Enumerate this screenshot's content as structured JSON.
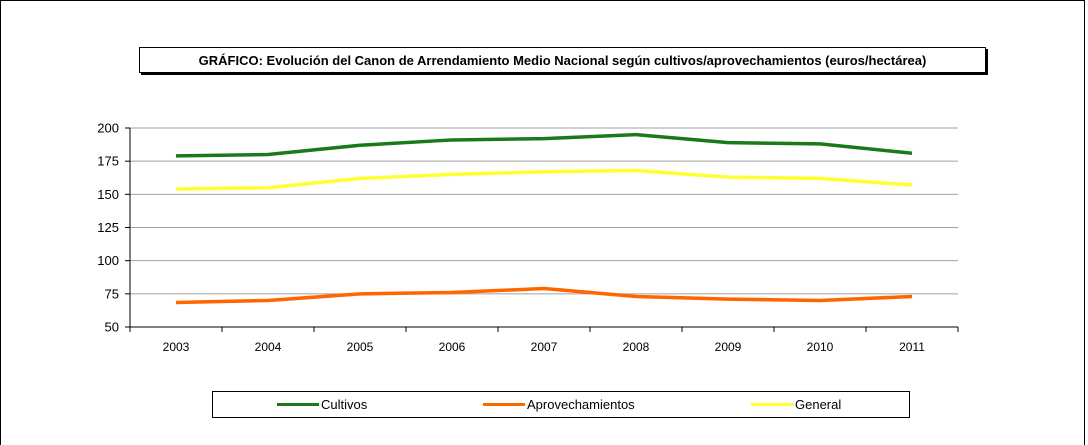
{
  "chart_data": {
    "type": "line",
    "title": "GRÁFICO: Evolución del Canon de Arrendamiento Medio Nacional según cultivos/aprovechamientos (euros/hectárea)",
    "xlabel": "",
    "ylabel": "",
    "categories": [
      "2003",
      "2004",
      "2005",
      "2006",
      "2007",
      "2008",
      "2009",
      "2010",
      "2011"
    ],
    "ylim": [
      50,
      200
    ],
    "yticks": [
      "50",
      "75",
      "100",
      "125",
      "150",
      "175",
      "200"
    ],
    "grid": true,
    "legend_position": "bottom",
    "series": [
      {
        "name": "Cultivos",
        "color": "#1a7a1a",
        "values": [
          179,
          180,
          187,
          191,
          192,
          195,
          189,
          188,
          181
        ]
      },
      {
        "name": "Aprovechamientos",
        "color": "#ff6600",
        "values": [
          68.5,
          70,
          75,
          76,
          79,
          73,
          71,
          70,
          73
        ]
      },
      {
        "name": "General",
        "color": "#ffff33",
        "values": [
          154,
          155,
          162,
          165,
          167,
          168,
          163,
          162,
          157
        ]
      }
    ]
  }
}
